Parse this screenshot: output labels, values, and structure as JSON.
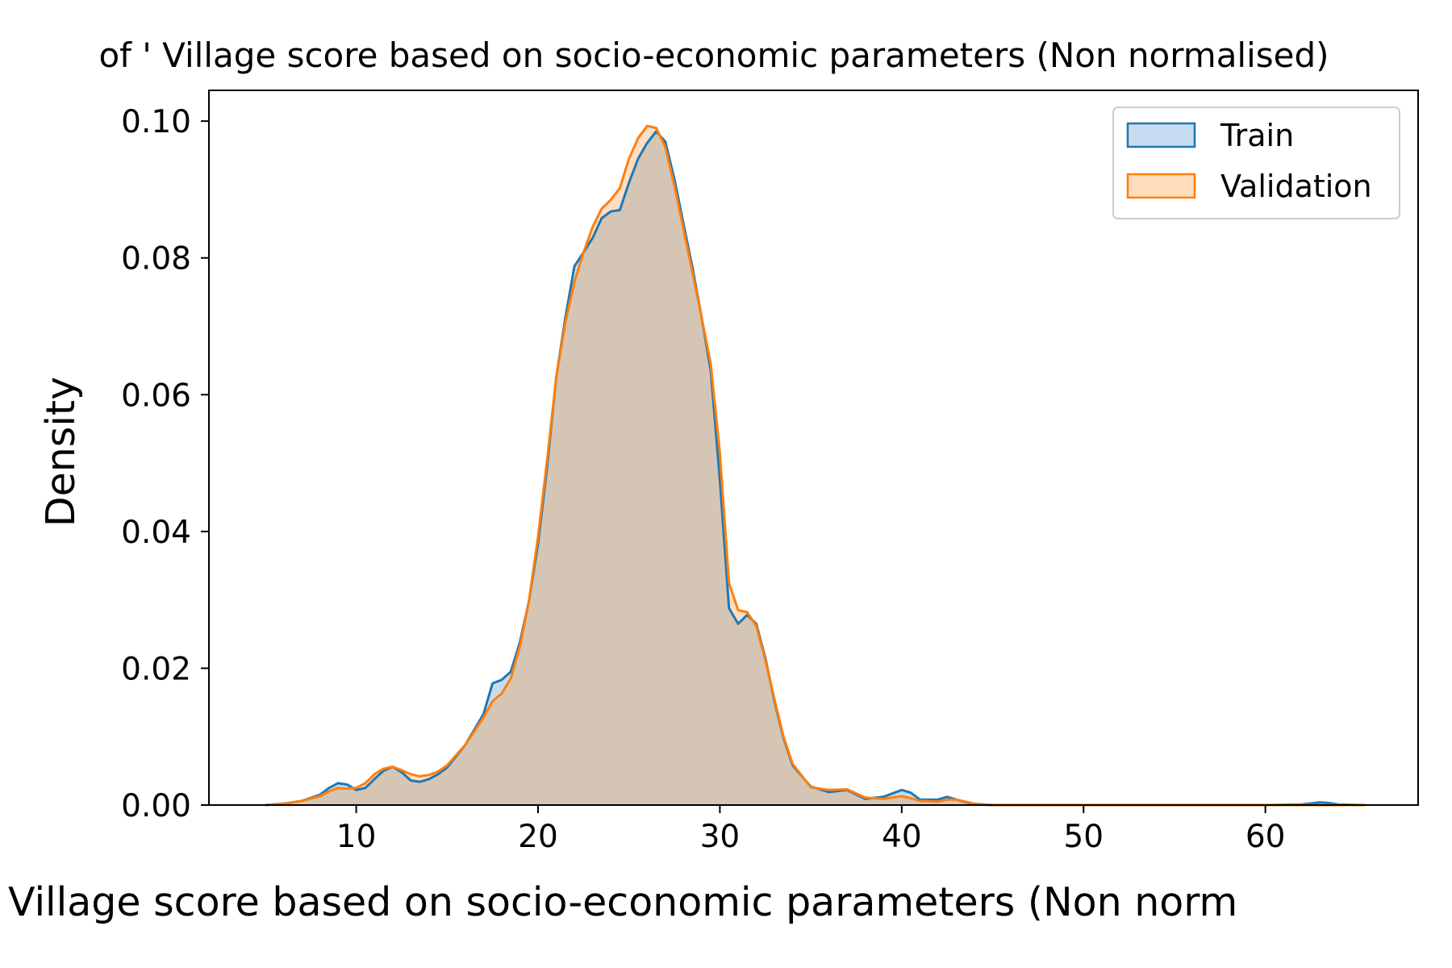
{
  "chart_data": {
    "type": "area",
    "title": "of ' Village score based on socio-economic parameters (Non normalised)",
    "xlabel": "Village score based on socio-economic parameters (Non norm",
    "ylabel": "Density",
    "xlim": [
      1.9,
      68.4
    ],
    "ylim": [
      0.0,
      0.1045
    ],
    "xticks": [
      10,
      20,
      30,
      40,
      50,
      60
    ],
    "yticks": [
      0.0,
      0.02,
      0.04,
      0.06,
      0.08,
      0.1
    ],
    "ytick_labels": [
      "0.00",
      "0.02",
      "0.04",
      "0.06",
      "0.08",
      "0.10"
    ],
    "grid": false,
    "legend": "top-right",
    "series": [
      {
        "name": "Train",
        "color": "#1f77b4",
        "fill_color": "#c6dbef",
        "x": [
          5,
          6,
          7,
          8,
          8.5,
          9,
          9.5,
          10,
          10.5,
          11,
          11.5,
          12,
          12.5,
          13,
          13.5,
          14,
          14.5,
          15,
          16,
          17,
          17.5,
          18,
          18.5,
          19,
          19.5,
          20,
          20.5,
          21,
          21.5,
          22,
          22.5,
          23,
          23.5,
          24,
          24.5,
          25,
          25.5,
          26,
          26.5,
          27,
          27.5,
          28,
          28.5,
          29,
          29.5,
          30,
          30.5,
          31,
          31.5,
          32,
          32.5,
          33,
          33.5,
          34,
          35,
          36,
          37,
          38,
          39,
          40,
          40.5,
          41,
          42,
          42.5,
          43,
          44,
          45,
          50,
          55,
          60,
          62,
          63,
          63.5,
          64,
          65.5
        ],
        "y": [
          0.0,
          0.0002,
          0.0006,
          0.0015,
          0.0025,
          0.0032,
          0.003,
          0.0022,
          0.0025,
          0.0038,
          0.005,
          0.0056,
          0.0048,
          0.0036,
          0.0034,
          0.0038,
          0.0045,
          0.0055,
          0.0088,
          0.0133,
          0.0178,
          0.0183,
          0.0195,
          0.0238,
          0.0298,
          0.0382,
          0.0495,
          0.0625,
          0.0712,
          0.0788,
          0.0808,
          0.0829,
          0.0858,
          0.0868,
          0.087,
          0.091,
          0.0945,
          0.0968,
          0.0985,
          0.097,
          0.0915,
          0.085,
          0.0785,
          0.0712,
          0.0635,
          0.0475,
          0.0288,
          0.0265,
          0.0278,
          0.0265,
          0.0215,
          0.0152,
          0.0098,
          0.0058,
          0.0027,
          0.0019,
          0.0022,
          0.0009,
          0.0012,
          0.0022,
          0.0018,
          0.0008,
          0.0008,
          0.0012,
          0.0008,
          0.0001,
          0.0,
          0.0,
          0.0,
          0.0,
          0.0001,
          0.0004,
          0.0003,
          0.0001,
          0.0
        ]
      },
      {
        "name": "Validation",
        "color": "#ff7f0e",
        "fill_color": "#ffdcbc",
        "x": [
          5,
          6,
          7,
          8,
          8.5,
          9,
          9.5,
          10,
          10.5,
          11,
          11.5,
          12,
          12.5,
          13,
          13.5,
          14,
          14.5,
          15,
          16,
          17,
          17.5,
          18,
          18.5,
          19,
          19.5,
          20,
          20.5,
          21,
          21.5,
          22,
          22.5,
          23,
          23.5,
          24,
          24.5,
          25,
          25.5,
          26,
          26.5,
          27,
          27.5,
          28,
          28.5,
          29,
          29.5,
          30,
          30.5,
          31,
          31.5,
          32,
          32.5,
          33,
          33.5,
          34,
          35,
          36,
          37,
          38,
          39,
          40,
          40.5,
          41,
          42,
          42.5,
          43,
          44,
          45,
          50,
          55,
          60,
          62,
          63,
          63.5,
          64,
          65.5
        ],
        "y": [
          0.0,
          0.0002,
          0.0006,
          0.0013,
          0.002,
          0.0025,
          0.0024,
          0.0025,
          0.0032,
          0.0045,
          0.0053,
          0.0056,
          0.0051,
          0.0045,
          0.0042,
          0.0044,
          0.0049,
          0.0058,
          0.0088,
          0.0128,
          0.0152,
          0.0163,
          0.0185,
          0.0232,
          0.0298,
          0.0392,
          0.0505,
          0.0625,
          0.0705,
          0.0765,
          0.0808,
          0.0845,
          0.0872,
          0.0885,
          0.0902,
          0.0945,
          0.0975,
          0.0993,
          0.099,
          0.0962,
          0.0905,
          0.0842,
          0.0778,
          0.0712,
          0.0645,
          0.0515,
          0.0325,
          0.0285,
          0.0282,
          0.0262,
          0.0212,
          0.0155,
          0.01,
          0.006,
          0.0026,
          0.0022,
          0.0023,
          0.0011,
          0.0009,
          0.0013,
          0.001,
          0.0006,
          0.0005,
          0.0008,
          0.0008,
          0.0002,
          0.0,
          0.0,
          0.0,
          0.0,
          0.0,
          0.0,
          0.0,
          0.0,
          0.0
        ]
      }
    ]
  }
}
